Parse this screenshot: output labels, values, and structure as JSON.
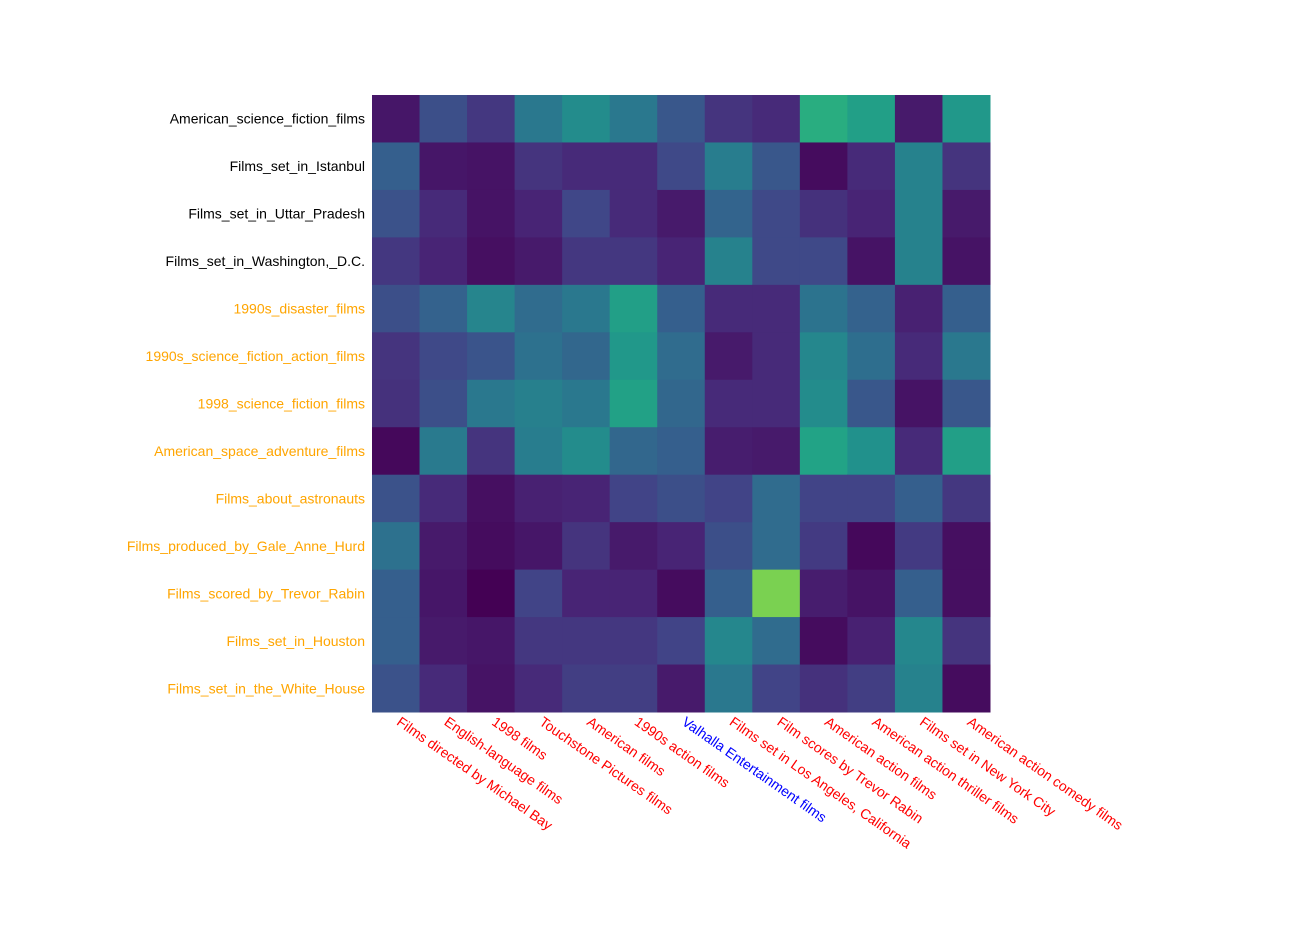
{
  "chart_data": {
    "type": "heatmap",
    "title": "",
    "xlabel": "",
    "ylabel": "",
    "colormap": "viridis",
    "value_range": [
      0,
      1
    ],
    "rows": [
      {
        "label": "American_science_fiction_films",
        "color": "#000000"
      },
      {
        "label": "Films_set_in_Istanbul",
        "color": "#000000"
      },
      {
        "label": "Films_set_in_Uttar_Pradesh",
        "color": "#000000"
      },
      {
        "label": "Films_set_in_Washington,_D.C.",
        "color": "#000000"
      },
      {
        "label": "1990s_disaster_films",
        "color": "#ffa500"
      },
      {
        "label": "1990s_science_fiction_action_films",
        "color": "#ffa500"
      },
      {
        "label": "1998_science_fiction_films",
        "color": "#ffa500"
      },
      {
        "label": "American_space_adventure_films",
        "color": "#ffa500"
      },
      {
        "label": "Films_about_astronauts",
        "color": "#ffa500"
      },
      {
        "label": "Films_produced_by_Gale_Anne_Hurd",
        "color": "#ffa500"
      },
      {
        "label": "Films_scored_by_Trevor_Rabin",
        "color": "#ffa500"
      },
      {
        "label": "Films_set_in_Houston",
        "color": "#ffa500"
      },
      {
        "label": "Films_set_in_the_White_House",
        "color": "#ffa500"
      }
    ],
    "columns": [
      {
        "label": "Films directed by Michael Bay",
        "color": "#ff0000"
      },
      {
        "label": "English-language films",
        "color": "#ff0000"
      },
      {
        "label": "1998 films",
        "color": "#ff0000"
      },
      {
        "label": "Touchstone Pictures films",
        "color": "#ff0000"
      },
      {
        "label": "American films",
        "color": "#ff0000"
      },
      {
        "label": "1990s action films",
        "color": "#ff0000"
      },
      {
        "label": "Valhalla Entertainment films",
        "color": "#0000ff"
      },
      {
        "label": "Films set in Los Angeles, California",
        "color": "#ff0000"
      },
      {
        "label": "Film scores by Trevor Rabin",
        "color": "#ff0000"
      },
      {
        "label": "American action films",
        "color": "#ff0000"
      },
      {
        "label": "American action thriller films",
        "color": "#ff0000"
      },
      {
        "label": "Films set in New York City",
        "color": "#ff0000"
      },
      {
        "label": "American action comedy films",
        "color": "#ff0000"
      }
    ],
    "values": [
      [
        0.06,
        0.24,
        0.16,
        0.4,
        0.48,
        0.4,
        0.27,
        0.15,
        0.12,
        0.62,
        0.56,
        0.07,
        0.53
      ],
      [
        0.3,
        0.06,
        0.05,
        0.15,
        0.12,
        0.12,
        0.22,
        0.42,
        0.27,
        0.03,
        0.12,
        0.44,
        0.15
      ],
      [
        0.25,
        0.12,
        0.05,
        0.1,
        0.21,
        0.12,
        0.07,
        0.32,
        0.22,
        0.14,
        0.1,
        0.44,
        0.07
      ],
      [
        0.16,
        0.1,
        0.04,
        0.07,
        0.16,
        0.16,
        0.1,
        0.44,
        0.22,
        0.22,
        0.05,
        0.44,
        0.05
      ],
      [
        0.24,
        0.31,
        0.45,
        0.35,
        0.4,
        0.56,
        0.3,
        0.12,
        0.12,
        0.38,
        0.31,
        0.09,
        0.3
      ],
      [
        0.15,
        0.22,
        0.26,
        0.37,
        0.33,
        0.53,
        0.35,
        0.07,
        0.12,
        0.46,
        0.36,
        0.12,
        0.4
      ],
      [
        0.14,
        0.24,
        0.4,
        0.43,
        0.4,
        0.57,
        0.33,
        0.12,
        0.12,
        0.48,
        0.27,
        0.05,
        0.27
      ],
      [
        0.02,
        0.41,
        0.15,
        0.42,
        0.48,
        0.33,
        0.3,
        0.08,
        0.07,
        0.58,
        0.5,
        0.12,
        0.56
      ],
      [
        0.25,
        0.12,
        0.04,
        0.09,
        0.1,
        0.2,
        0.24,
        0.2,
        0.35,
        0.2,
        0.2,
        0.3,
        0.16
      ],
      [
        0.37,
        0.07,
        0.03,
        0.06,
        0.15,
        0.07,
        0.1,
        0.24,
        0.35,
        0.17,
        0.02,
        0.17,
        0.04
      ],
      [
        0.3,
        0.06,
        0.0,
        0.2,
        0.1,
        0.1,
        0.03,
        0.3,
        0.8,
        0.08,
        0.05,
        0.3,
        0.04
      ],
      [
        0.3,
        0.07,
        0.06,
        0.16,
        0.16,
        0.16,
        0.2,
        0.46,
        0.35,
        0.03,
        0.09,
        0.46,
        0.15
      ],
      [
        0.25,
        0.12,
        0.05,
        0.12,
        0.18,
        0.18,
        0.07,
        0.4,
        0.2,
        0.14,
        0.18,
        0.44,
        0.03
      ]
    ]
  }
}
